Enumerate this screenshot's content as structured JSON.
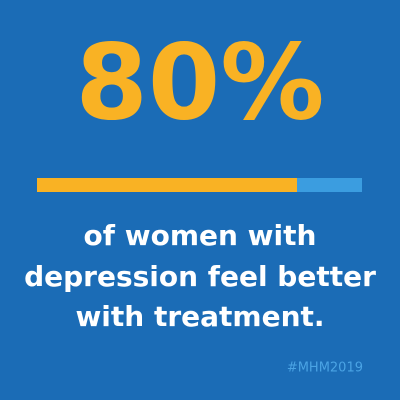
{
  "stat": {
    "value": 80,
    "label": "80%"
  },
  "caption": [
    "of women with",
    "depression feel better",
    "with treatment."
  ],
  "hashtag": "#MHM2019"
}
